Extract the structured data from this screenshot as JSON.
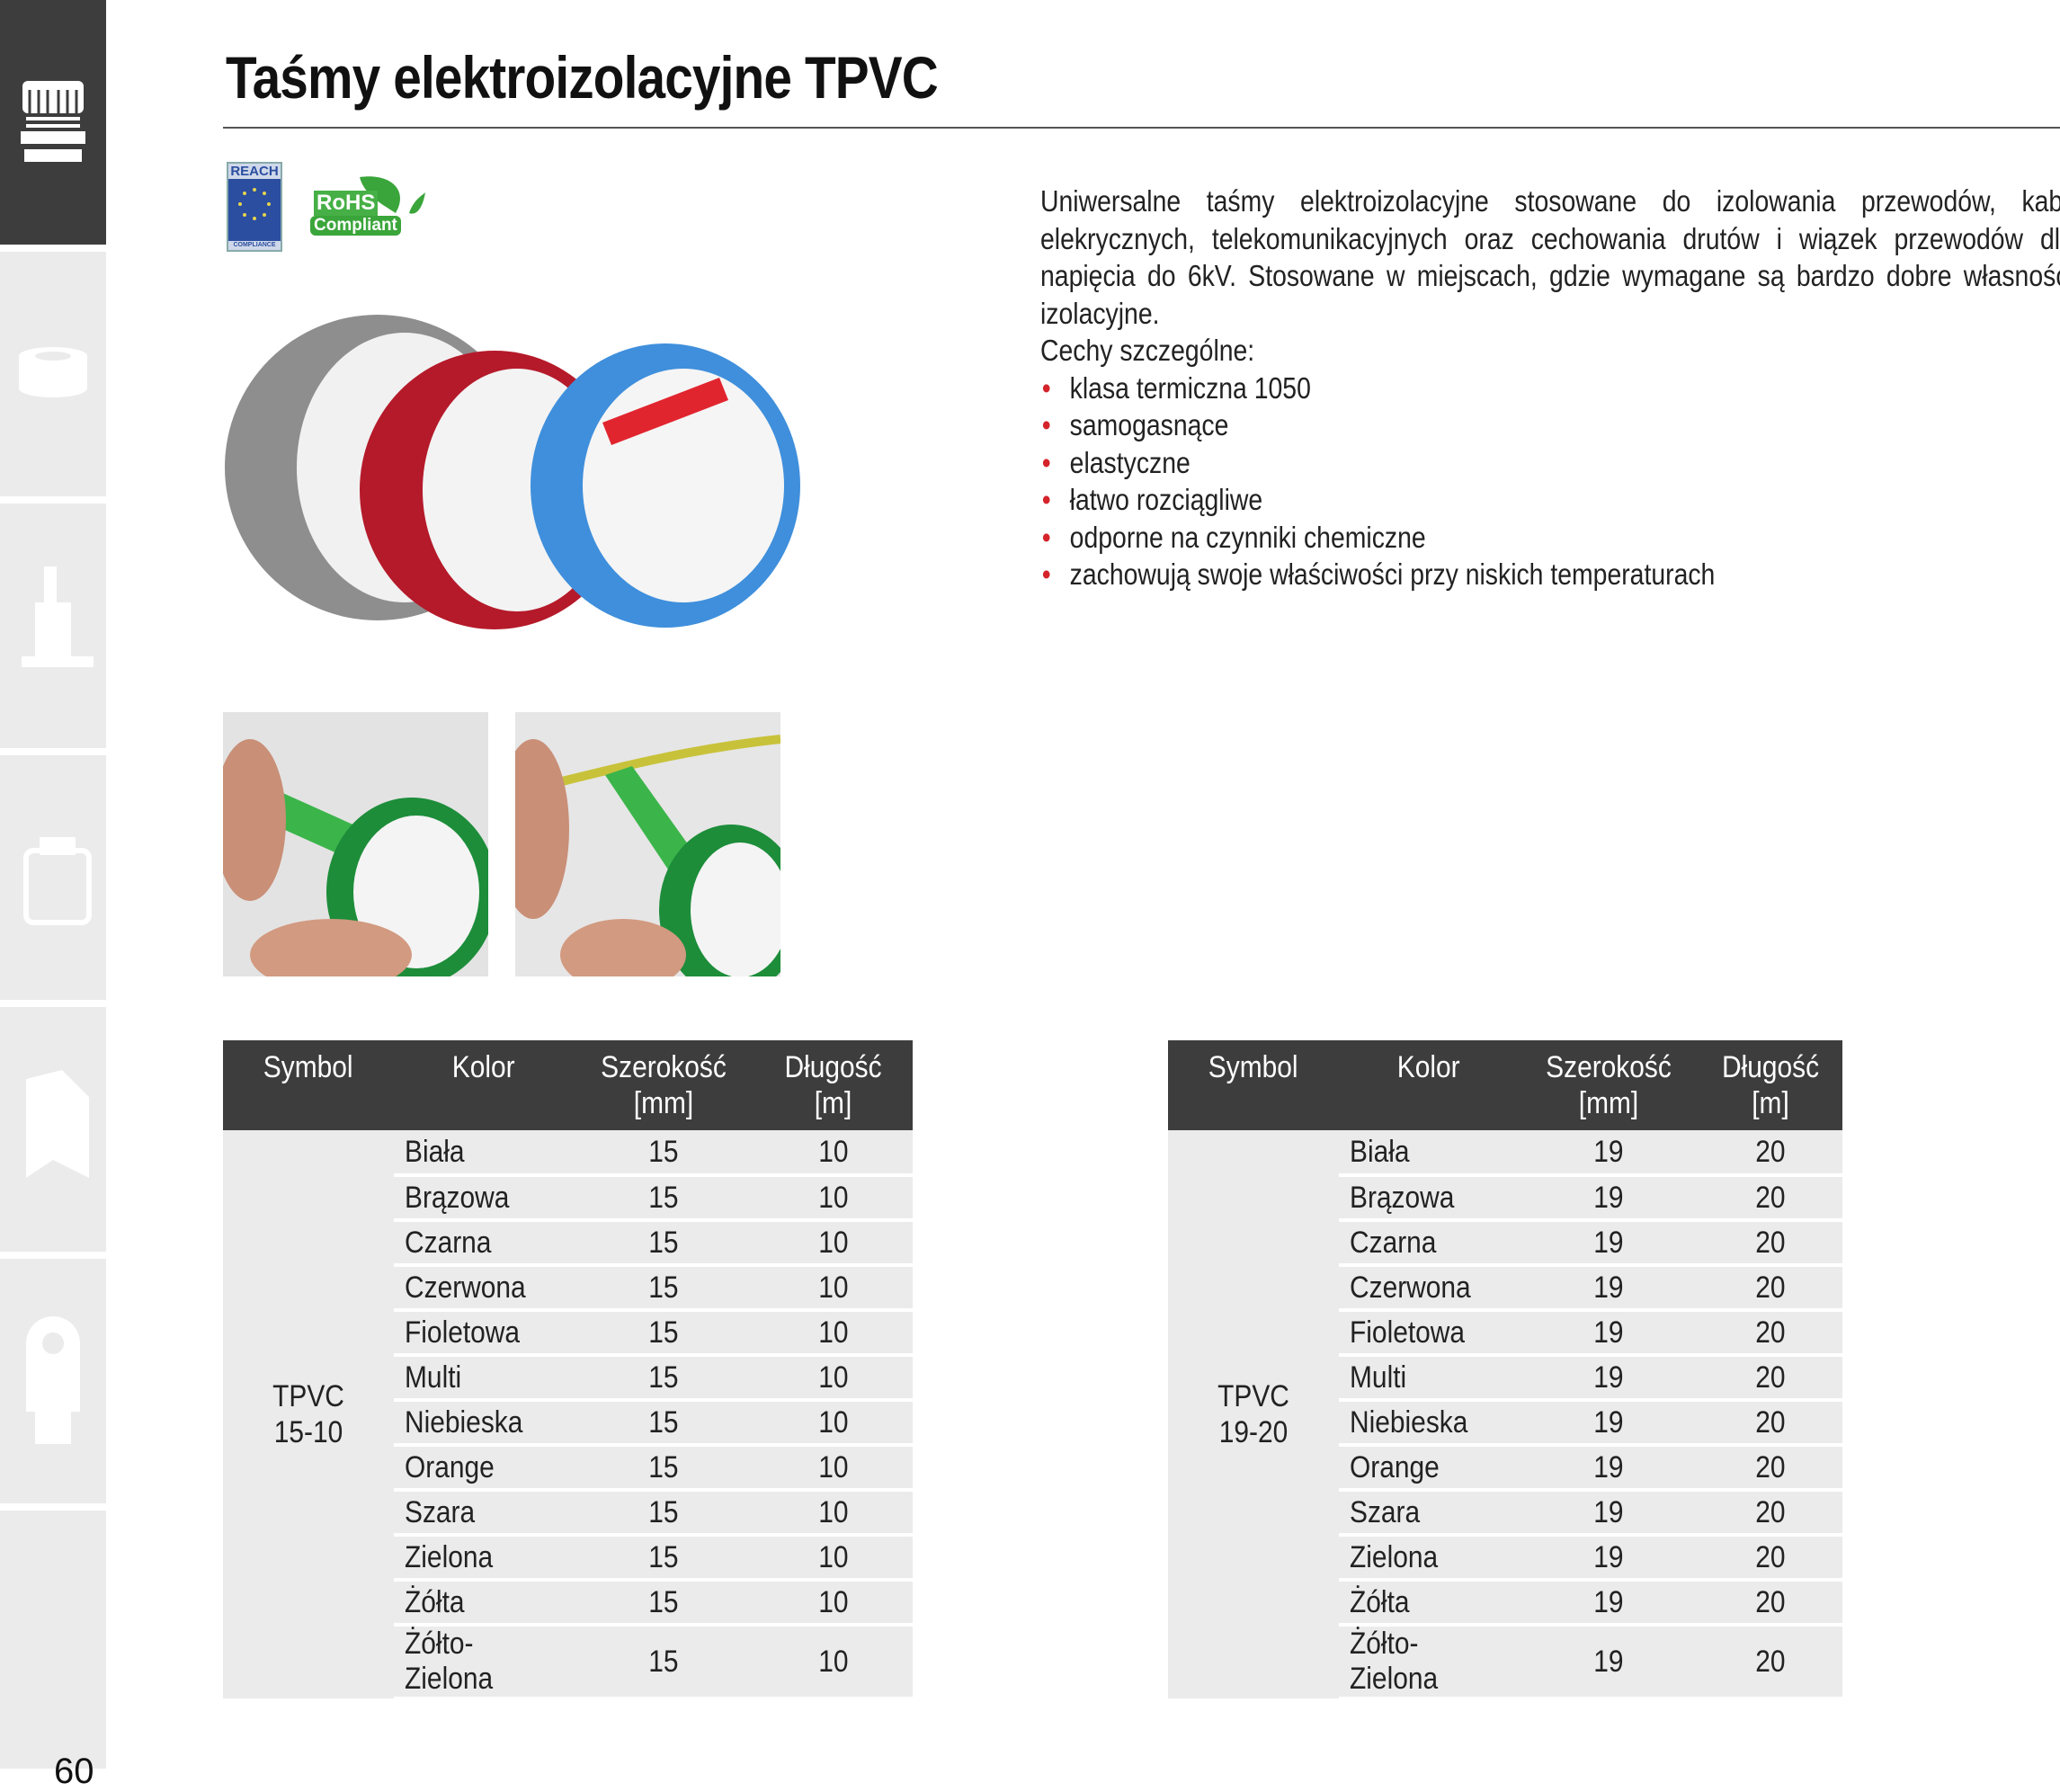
{
  "title": "Taśmy elektroizolacyjne TPVC",
  "badges": {
    "reach": "REACH",
    "reach_sub": "COMPLIANCE",
    "rohs": "RoHS",
    "rohs_sub": "Compliant"
  },
  "description": {
    "paragraph": "Uniwersalne taśmy elektroizolacyjne stosowane do izolowania przewodów, kabli elekrycznych, telekomunikacyjnych oraz cechowania drutów i wiązek przewodów dla napięcia do 6kV. Stosowane w miejscach, gdzie wymagane są bardzo dobre własności izolacyjne.",
    "features_heading": "Cechy szczególne:",
    "features": [
      "klasa termiczna 1050",
      "samogasnące",
      "elastyczne",
      "łatwo rozciągliwe",
      "odporne na czynniki chemiczne",
      "zachowują swoje właściwości przy niskich temperaturach"
    ]
  },
  "colors": {
    "accent": "#d4232a",
    "header_bg": "#3d3d3d",
    "row_bg": "#ebebeb"
  },
  "tables": [
    {
      "headers": [
        "Symbol",
        "Kolor",
        "Szerokość [mm]",
        "Długość [m]"
      ],
      "symbol": "TPVC 15-10",
      "width": "15",
      "length": "10",
      "colors_list": [
        "Biała",
        "Brązowa",
        "Czarna",
        "Czerwona",
        "Fioletowa",
        "Multi",
        "Niebieska",
        "Orange",
        "Szara",
        "Zielona",
        "Żółta",
        "Żółto-Zielona"
      ]
    },
    {
      "headers": [
        "Symbol",
        "Kolor",
        "Szerokość [mm]",
        "Długość [m]"
      ],
      "symbol": "TPVC 19-20",
      "width": "19",
      "length": "20",
      "colors_list": [
        "Biała",
        "Brązowa",
        "Czarna",
        "Czerwona",
        "Fioletowa",
        "Multi",
        "Niebieska",
        "Orange",
        "Szara",
        "Zielona",
        "Żółta",
        "Żółto-Zielona"
      ]
    }
  ],
  "sidebar": {
    "icons": [
      "cable-gland-icon",
      "tape-roll-icon",
      "crimping-tool-icon",
      "cable-cutter-icon",
      "terminal-block-icon",
      "cable-lug-icon"
    ]
  },
  "page_number": "60"
}
